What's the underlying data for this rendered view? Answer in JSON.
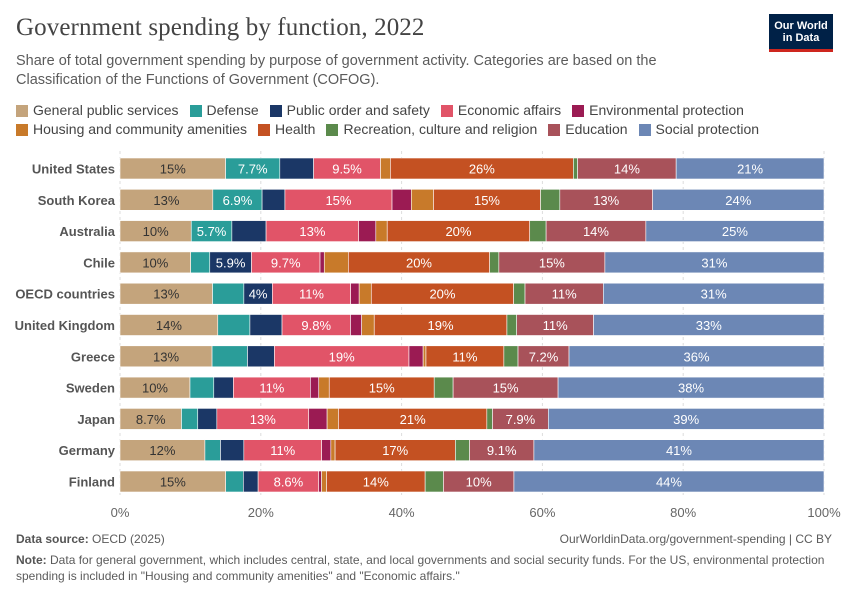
{
  "header": {
    "title": "Government spending by function, 2022",
    "subtitle": "Share of total government spending by purpose of government activity. Categories are based on the Classification of the Functions of Government (COFOG).",
    "logo_line1": "Our World",
    "logo_line2": "in Data"
  },
  "chart_data": {
    "type": "bar",
    "orientation": "horizontal",
    "stacked": true,
    "title": "Government spending by function, 2022",
    "xlim": [
      0,
      100
    ],
    "x_ticks": [
      "0%",
      "20%",
      "40%",
      "60%",
      "80%",
      "100%"
    ],
    "categories": [
      "United States",
      "South Korea",
      "Australia",
      "Chile",
      "OECD countries",
      "United Kingdom",
      "Greece",
      "Sweden",
      "Japan",
      "Germany",
      "Finland"
    ],
    "series": [
      {
        "name": "General public services",
        "color": "#c4a47c",
        "values": [
          15,
          13,
          10,
          10,
          13,
          14,
          13,
          10,
          8.7,
          12,
          15
        ],
        "labels": [
          "15%",
          "13%",
          "10%",
          "10%",
          "13%",
          "14%",
          "13%",
          "10%",
          "8.7%",
          "12%",
          "15%"
        ]
      },
      {
        "name": "Defense",
        "color": "#2a9d99",
        "values": [
          7.7,
          6.9,
          5.7,
          2.7,
          4.4,
          4.6,
          5.0,
          3.4,
          2.3,
          2.2,
          2.5
        ],
        "labels": [
          "7.7%",
          "6.9%",
          "5.7%",
          "",
          "",
          "",
          "",
          "",
          "",
          "",
          ""
        ]
      },
      {
        "name": "Public order and safety",
        "color": "#1b3766",
        "values": [
          4.8,
          3.2,
          4.8,
          5.9,
          4.0,
          4.6,
          3.8,
          2.8,
          2.7,
          3.3,
          2.1
        ],
        "labels": [
          "",
          "",
          "",
          "5.9%",
          "4%",
          "",
          "",
          "",
          "",
          "",
          ""
        ]
      },
      {
        "name": "Economic affairs",
        "color": "#e15468",
        "values": [
          9.5,
          15,
          13,
          9.7,
          11,
          9.8,
          19,
          11,
          13,
          11,
          8.6
        ],
        "labels": [
          "9.5%",
          "15%",
          "13%",
          "9.7%",
          "11%",
          "9.8%",
          "19%",
          "11%",
          "13%",
          "11%",
          "8.6%"
        ]
      },
      {
        "name": "Environmental protection",
        "color": "#9b1b53",
        "values": [
          0.0,
          2.7,
          2.4,
          0.6,
          1.2,
          1.6,
          2.0,
          1.2,
          2.6,
          1.3,
          0.4
        ]
      },
      {
        "name": "Housing and community amenities",
        "color": "#c87a2a",
        "values": [
          1.4,
          3.1,
          1.6,
          3.4,
          1.7,
          1.8,
          0.4,
          1.5,
          1.6,
          0.6,
          0.7
        ]
      },
      {
        "name": "Health",
        "color": "#c45122",
        "values": [
          26,
          15,
          20,
          20,
          20,
          19,
          11,
          15,
          21,
          17,
          14
        ],
        "labels": [
          "26%",
          "15%",
          "20%",
          "20%",
          "20%",
          "19%",
          "11%",
          "15%",
          "21%",
          "17%",
          "14%"
        ]
      },
      {
        "name": "Recreation, culture and religion",
        "color": "#5b8a4c",
        "values": [
          0.6,
          2.7,
          2.3,
          1.3,
          1.6,
          1.4,
          2.0,
          2.7,
          0.8,
          2.0,
          2.6
        ]
      },
      {
        "name": "Education",
        "color": "#a8525a",
        "values": [
          14,
          13,
          14,
          15,
          11,
          11,
          7.2,
          15,
          7.9,
          9.1,
          10
        ],
        "labels": [
          "14%",
          "13%",
          "14%",
          "15%",
          "11%",
          "11%",
          "7.2%",
          "15%",
          "7.9%",
          "9.1%",
          "10%"
        ]
      },
      {
        "name": "Social protection",
        "color": "#6c87b5",
        "values": [
          21,
          24,
          25,
          31,
          31,
          33,
          36,
          38,
          39,
          41,
          44
        ],
        "labels": [
          "21%",
          "24%",
          "25%",
          "31%",
          "31%",
          "33%",
          "36%",
          "38%",
          "39%",
          "41%",
          "44%"
        ]
      }
    ]
  },
  "legend": {
    "row1": [
      "General public services",
      "Defense",
      "Public order and safety",
      "Economic affairs",
      "Environmental protection"
    ],
    "row2": [
      "Housing and community amenities",
      "Health",
      "Recreation, culture and religion",
      "Education",
      "Social protection"
    ]
  },
  "footer": {
    "source_label": "Data source:",
    "source_value": "OECD (2025)",
    "url": "OurWorldinData.org/government-spending | CC BY",
    "note_label": "Note:",
    "note_value": "Data for general government, which includes central, state, and local governments and social security funds. For the US, environmental protection spending is included in \"Housing and community amenities\" and \"Economic affairs.\""
  }
}
